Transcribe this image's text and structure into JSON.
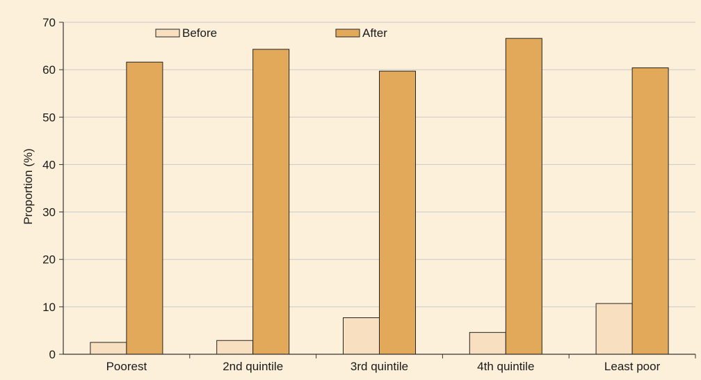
{
  "chart_data": {
    "type": "bar",
    "title": "",
    "xlabel": "",
    "ylabel": "Proportion (%)",
    "ylim": [
      0,
      70
    ],
    "yticks": [
      0,
      10,
      20,
      30,
      40,
      50,
      60,
      70
    ],
    "categories": [
      "Poorest",
      "2nd quintile",
      "3rd quintile",
      "4th quintile",
      "Least poor"
    ],
    "series": [
      {
        "name": "Before",
        "values": [
          2.5,
          2.9,
          7.7,
          4.6,
          10.7
        ],
        "color": "#f7dfc0"
      },
      {
        "name": "After",
        "values": [
          61.6,
          64.3,
          59.7,
          66.6,
          60.4
        ],
        "color": "#e3a95a"
      }
    ],
    "grid": true,
    "legend_position": "top"
  }
}
